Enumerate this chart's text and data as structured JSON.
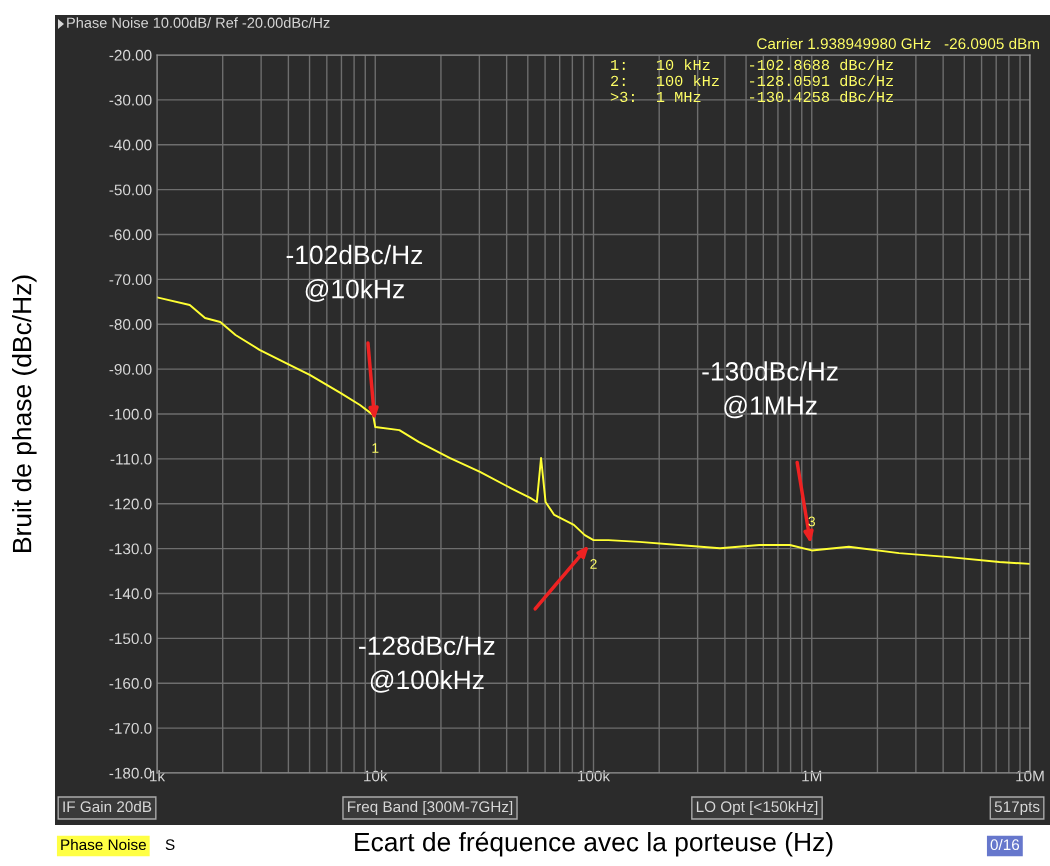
{
  "chart_data": {
    "type": "line",
    "xlabel": "Ecart de fréquence avec la porteuse (Hz)",
    "ylabel": "Bruit de phase (dBc/Hz)",
    "log": "x",
    "grid": true,
    "x": [
      1000,
      1413,
      1660,
      1950,
      2290,
      2950,
      4070,
      5010,
      6920,
      8510,
      9770,
      10000,
      12900,
      15800,
      21900,
      30200,
      41700,
      51300,
      55000,
      57500,
      60300,
      66100,
      81300,
      91200,
      100000,
      117000,
      162000,
      245000,
      380000,
      575000,
      794000,
      1000000,
      1480000,
      2510000,
      4270000,
      7240000,
      10000000
    ],
    "series": [
      {
        "color": "#ffff33",
        "values": [
          -74.0,
          -75.7,
          -78.6,
          -79.5,
          -82.4,
          -85.7,
          -89.1,
          -91.3,
          -95.3,
          -98.0,
          -100.2,
          -102.9,
          -103.6,
          -106.2,
          -109.8,
          -112.9,
          -116.5,
          -118.7,
          -119.6,
          -109.8,
          -119.6,
          -122.5,
          -124.7,
          -127.0,
          -128.1,
          -128.1,
          -128.5,
          -129.2,
          -129.9,
          -129.2,
          -129.2,
          -130.4,
          -129.6,
          -131.0,
          -131.9,
          -133.0,
          -133.4
        ]
      }
    ],
    "xlim": [
      1000,
      10000000
    ],
    "xticks": [
      {
        "value": 1000,
        "label": "1k"
      },
      {
        "value": 10000,
        "label": "10k"
      },
      {
        "value": 100000,
        "label": "100k"
      },
      {
        "value": 1000000,
        "label": "1M"
      },
      {
        "value": 10000000,
        "label": "10M"
      }
    ],
    "ylim": [
      -180,
      -20
    ],
    "yticks": [
      {
        "value": -20,
        "label": "-20.00"
      },
      {
        "value": -30,
        "label": "-30.00"
      },
      {
        "value": -40,
        "label": "-40.00"
      },
      {
        "value": -50,
        "label": "-50.00"
      },
      {
        "value": -60,
        "label": "-60.00"
      },
      {
        "value": -70,
        "label": "-70.00"
      },
      {
        "value": -80,
        "label": "-80.00"
      },
      {
        "value": -90,
        "label": "-90.00"
      },
      {
        "value": -100,
        "label": "-100.0"
      },
      {
        "value": -110,
        "label": "-110.0"
      },
      {
        "value": -120,
        "label": "-120.0"
      },
      {
        "value": -130,
        "label": "-130.0"
      },
      {
        "value": -140,
        "label": "-140.0"
      },
      {
        "value": -150,
        "label": "-150.0"
      },
      {
        "value": -160,
        "label": "-160.0"
      },
      {
        "value": -170,
        "label": "-170.0"
      },
      {
        "value": -180,
        "label": "-180.0"
      }
    ],
    "annotations": [
      "Phase Noise 10.00dB/ Ref -20.00dBc/Hz",
      "Carrier 1.938949980 GHz   -26.0905 dBm",
      "1:   10 kHz    -102.8688 dBc/Hz",
      "2:   100 kHz   -128.0591 dBc/Hz",
      ">3:  1 MHz     -130.4258 dBc/Hz",
      "IF Gain 20dB",
      "Freq Band [300M-7GHz]",
      "LO Opt [<150kHz]",
      "517pts",
      "Phase Noise",
      "S",
      "0/16",
      "-102dBc/Hz\n@10kHz",
      "-128dBc/Hz\n@100kHz",
      "-130dBc/Hz\n@1MHz",
      {
        "text": "1",
        "x": 10000,
        "y": -102.9
      },
      {
        "text": "2",
        "x": 100000,
        "y": -128.1
      },
      {
        "text": "3",
        "x": 1000000,
        "y": -130.4
      }
    ]
  }
}
